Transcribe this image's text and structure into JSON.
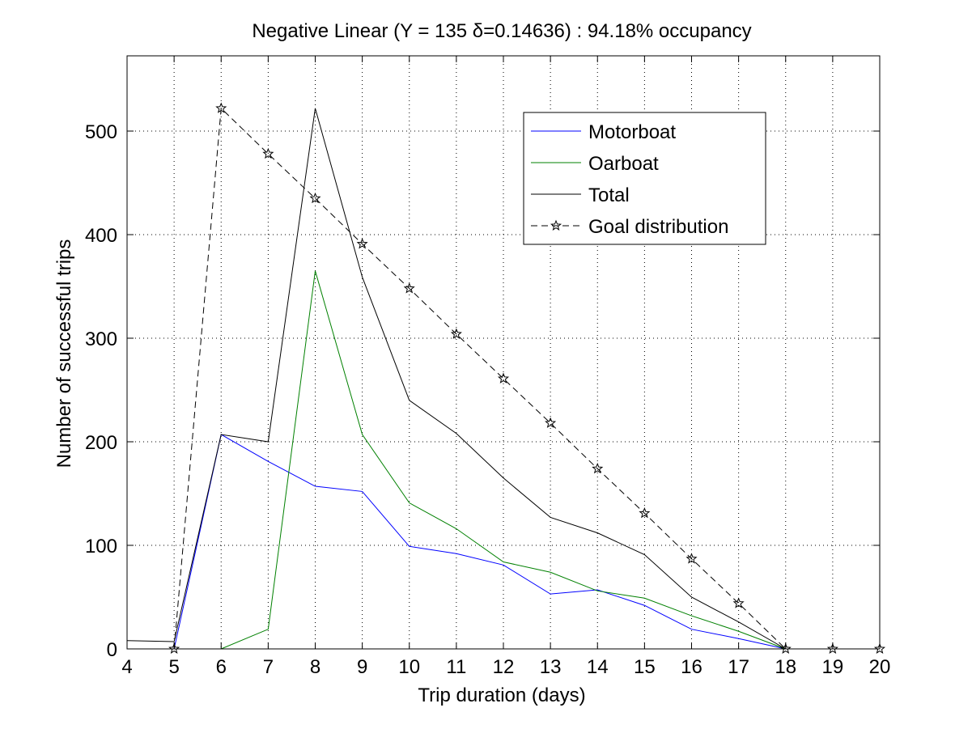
{
  "chart_data": {
    "type": "line",
    "title": "Negative Linear (Y = 135 δ=0.14636) : 94.18% occupancy",
    "xlabel": "Trip duration (days)",
    "ylabel": "Number of successful trips",
    "xlim": [
      4,
      20
    ],
    "ylim": [
      0,
      570
    ],
    "xticks": [
      4,
      5,
      6,
      7,
      8,
      9,
      10,
      11,
      12,
      13,
      14,
      15,
      16,
      17,
      18,
      19,
      20
    ],
    "yticks": [
      0,
      100,
      200,
      300,
      400,
      500
    ],
    "grid": true,
    "legend_position": "top-right",
    "series": [
      {
        "name": "Motorboat",
        "color": "#0000ff",
        "line_style": "solid",
        "marker": "none",
        "x": [
          5,
          6,
          7,
          8,
          9,
          10,
          11,
          12,
          13,
          14,
          15,
          16,
          17,
          18
        ],
        "y": [
          0,
          207,
          181,
          157,
          152,
          99,
          92,
          81,
          53,
          57,
          42,
          19,
          10,
          0
        ]
      },
      {
        "name": "Oarboat",
        "color": "#008000",
        "line_style": "solid",
        "marker": "none",
        "x": [
          5,
          6,
          7,
          8,
          9,
          10,
          11,
          12,
          13,
          14,
          15,
          16,
          17,
          18
        ],
        "y": [
          0,
          0,
          19,
          365,
          207,
          141,
          116,
          84,
          74,
          56,
          49,
          32,
          17,
          0
        ]
      },
      {
        "name": "Total",
        "color": "#000000",
        "line_style": "solid",
        "marker": "none",
        "x": [
          4,
          5,
          6,
          7,
          8,
          9,
          10,
          11,
          12,
          13,
          14,
          15,
          16,
          17,
          18
        ],
        "y": [
          8,
          7,
          207,
          200,
          522,
          359,
          240,
          208,
          165,
          127,
          112,
          91,
          50,
          26,
          0
        ]
      },
      {
        "name": "Goal distribution",
        "color": "#000000",
        "line_style": "dashed",
        "marker": "star",
        "x": [
          5,
          6,
          7,
          8,
          9,
          10,
          11,
          12,
          13,
          14,
          15,
          16,
          17,
          18,
          19,
          20
        ],
        "y": [
          0,
          522,
          478,
          435,
          391,
          348,
          304,
          261,
          218,
          174,
          131,
          87,
          44,
          0,
          0,
          0
        ]
      }
    ]
  }
}
